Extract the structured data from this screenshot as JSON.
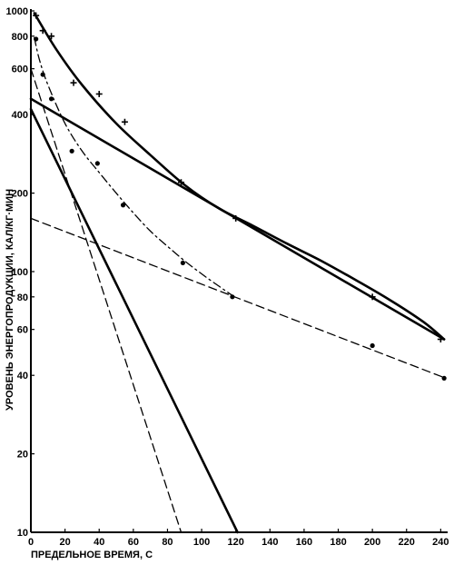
{
  "chart_data": {
    "type": "scatter",
    "title": "",
    "xlabel": "ПРЕДЕЛЬНОЕ ВРЕМЯ, С",
    "ylabel": "УРОВЕНЬ ЭНЕРГОПРОДУКЦИИ, КАЛ/КГ·МИН",
    "xlim": [
      0,
      243
    ],
    "ylim": [
      10,
      1000
    ],
    "yscale": "log",
    "grid": false,
    "legend": "none",
    "x_ticks": [
      0,
      20,
      40,
      60,
      80,
      100,
      120,
      140,
      160,
      180,
      200,
      220,
      240
    ],
    "y_ticks": [
      10,
      20,
      40,
      60,
      80,
      100,
      200,
      400,
      600,
      800,
      1000
    ],
    "series": [
      {
        "marker": "plus",
        "style": "points",
        "points": [
          [
            3,
            960
          ],
          [
            7,
            840
          ],
          [
            12,
            800
          ],
          [
            25,
            530
          ],
          [
            40,
            480
          ],
          [
            55,
            375
          ],
          [
            88,
            220
          ],
          [
            120,
            160
          ],
          [
            200,
            80
          ],
          [
            240,
            55
          ]
        ]
      },
      {
        "marker": "dot",
        "style": "points",
        "points": [
          [
            3,
            780
          ],
          [
            7,
            570
          ],
          [
            12,
            460
          ],
          [
            24,
            290
          ],
          [
            39,
            260
          ],
          [
            54,
            180
          ],
          [
            89,
            108
          ],
          [
            118,
            80
          ],
          [
            200,
            52
          ],
          [
            242,
            39
          ]
        ]
      },
      {
        "style": "thick-curve",
        "points": [
          [
            2,
            980
          ],
          [
            15,
            710
          ],
          [
            30,
            520
          ],
          [
            50,
            370
          ],
          [
            70,
            280
          ],
          [
            90,
            215
          ],
          [
            110,
            175
          ],
          [
            130,
            150
          ],
          [
            150,
            128
          ],
          [
            170,
            110
          ],
          [
            190,
            93
          ],
          [
            210,
            78
          ],
          [
            230,
            64
          ],
          [
            242,
            55
          ]
        ]
      },
      {
        "style": "dash-dot-curve",
        "points": [
          [
            2,
            790
          ],
          [
            5,
            650
          ],
          [
            10,
            520
          ],
          [
            20,
            370
          ],
          [
            30,
            290
          ],
          [
            40,
            240
          ],
          [
            50,
            200
          ],
          [
            60,
            168
          ],
          [
            70,
            143
          ],
          [
            80,
            125
          ],
          [
            90,
            110
          ],
          [
            100,
            98
          ],
          [
            110,
            88
          ],
          [
            118,
            81
          ]
        ]
      },
      {
        "style": "thick-line",
        "points": [
          [
            0,
            460
          ],
          [
            242,
            55
          ]
        ]
      },
      {
        "style": "thick-line",
        "points": [
          [
            0,
            420
          ],
          [
            121,
            10
          ]
        ]
      },
      {
        "style": "dashed-line",
        "points": [
          [
            0,
            160
          ],
          [
            243,
            39
          ]
        ]
      },
      {
        "style": "dashed-line",
        "points": [
          [
            0,
            600
          ],
          [
            88,
            10
          ]
        ]
      }
    ]
  }
}
